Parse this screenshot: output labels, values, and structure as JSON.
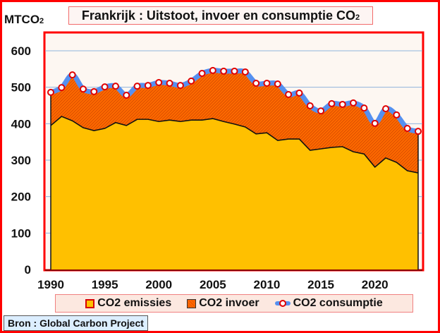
{
  "chart_data": {
    "type": "area",
    "title": "Frankrijk : Uitstoot, invoer en consumptie CO2",
    "ylabel": "MTCO2",
    "xlabel": "",
    "ylim": [
      0,
      600
    ],
    "yticks": [
      0,
      100,
      200,
      300,
      400,
      500,
      600
    ],
    "xticks": [
      1990,
      1995,
      2000,
      2005,
      2010,
      2015,
      2020
    ],
    "grid": true,
    "legend_position": "bottom",
    "x": [
      1990,
      1991,
      1992,
      1993,
      1994,
      1995,
      1996,
      1997,
      1998,
      1999,
      2000,
      2001,
      2002,
      2003,
      2004,
      2005,
      2006,
      2007,
      2008,
      2009,
      2010,
      2011,
      2012,
      2013,
      2014,
      2015,
      2016,
      2017,
      2018,
      2019,
      2020,
      2021,
      2022,
      2023,
      2024
    ],
    "series": [
      {
        "name": "CO2 emissies",
        "color": "#ffc000",
        "values": [
          395,
          420,
          408,
          389,
          381,
          387,
          403,
          395,
          412,
          412,
          406,
          410,
          406,
          410,
          410,
          414,
          406,
          399,
          391,
          372,
          375,
          354,
          358,
          358,
          327,
          331,
          335,
          337,
          323,
          317,
          281,
          306,
          294,
          271,
          265
        ]
      },
      {
        "name": "CO2 invoer",
        "color": "#ff6a00",
        "values": [
          91,
          79,
          126,
          106,
          107,
          114,
          100,
          83,
          91,
          93,
          107,
          101,
          99,
          107,
          128,
          132,
          138,
          145,
          151,
          139,
          136,
          155,
          122,
          126,
          122,
          104,
          120,
          116,
          134,
          126,
          120,
          135,
          130,
          116,
          114
        ]
      },
      {
        "name": "CO2 consumptie",
        "color": "#5590f0",
        "values": [
          486,
          499,
          534,
          495,
          488,
          501,
          503,
          478,
          503,
          505,
          513,
          511,
          505,
          517,
          538,
          546,
          544,
          544,
          542,
          511,
          511,
          509,
          480,
          484,
          449,
          435,
          455,
          453,
          457,
          443,
          401,
          441,
          424,
          387,
          379
        ]
      }
    ]
  },
  "labels": {
    "title_main": "Frankrijk : Uitstoot, invoer en consumptie CO",
    "title_sub": "2",
    "unit_main": "MTCO",
    "unit_sub": "2",
    "legend_emissies": "CO2 emissies",
    "legend_invoer": "CO2 invoer",
    "legend_consumptie": "CO2 consumptie",
    "source": "Bron : Global Carbon Project"
  }
}
